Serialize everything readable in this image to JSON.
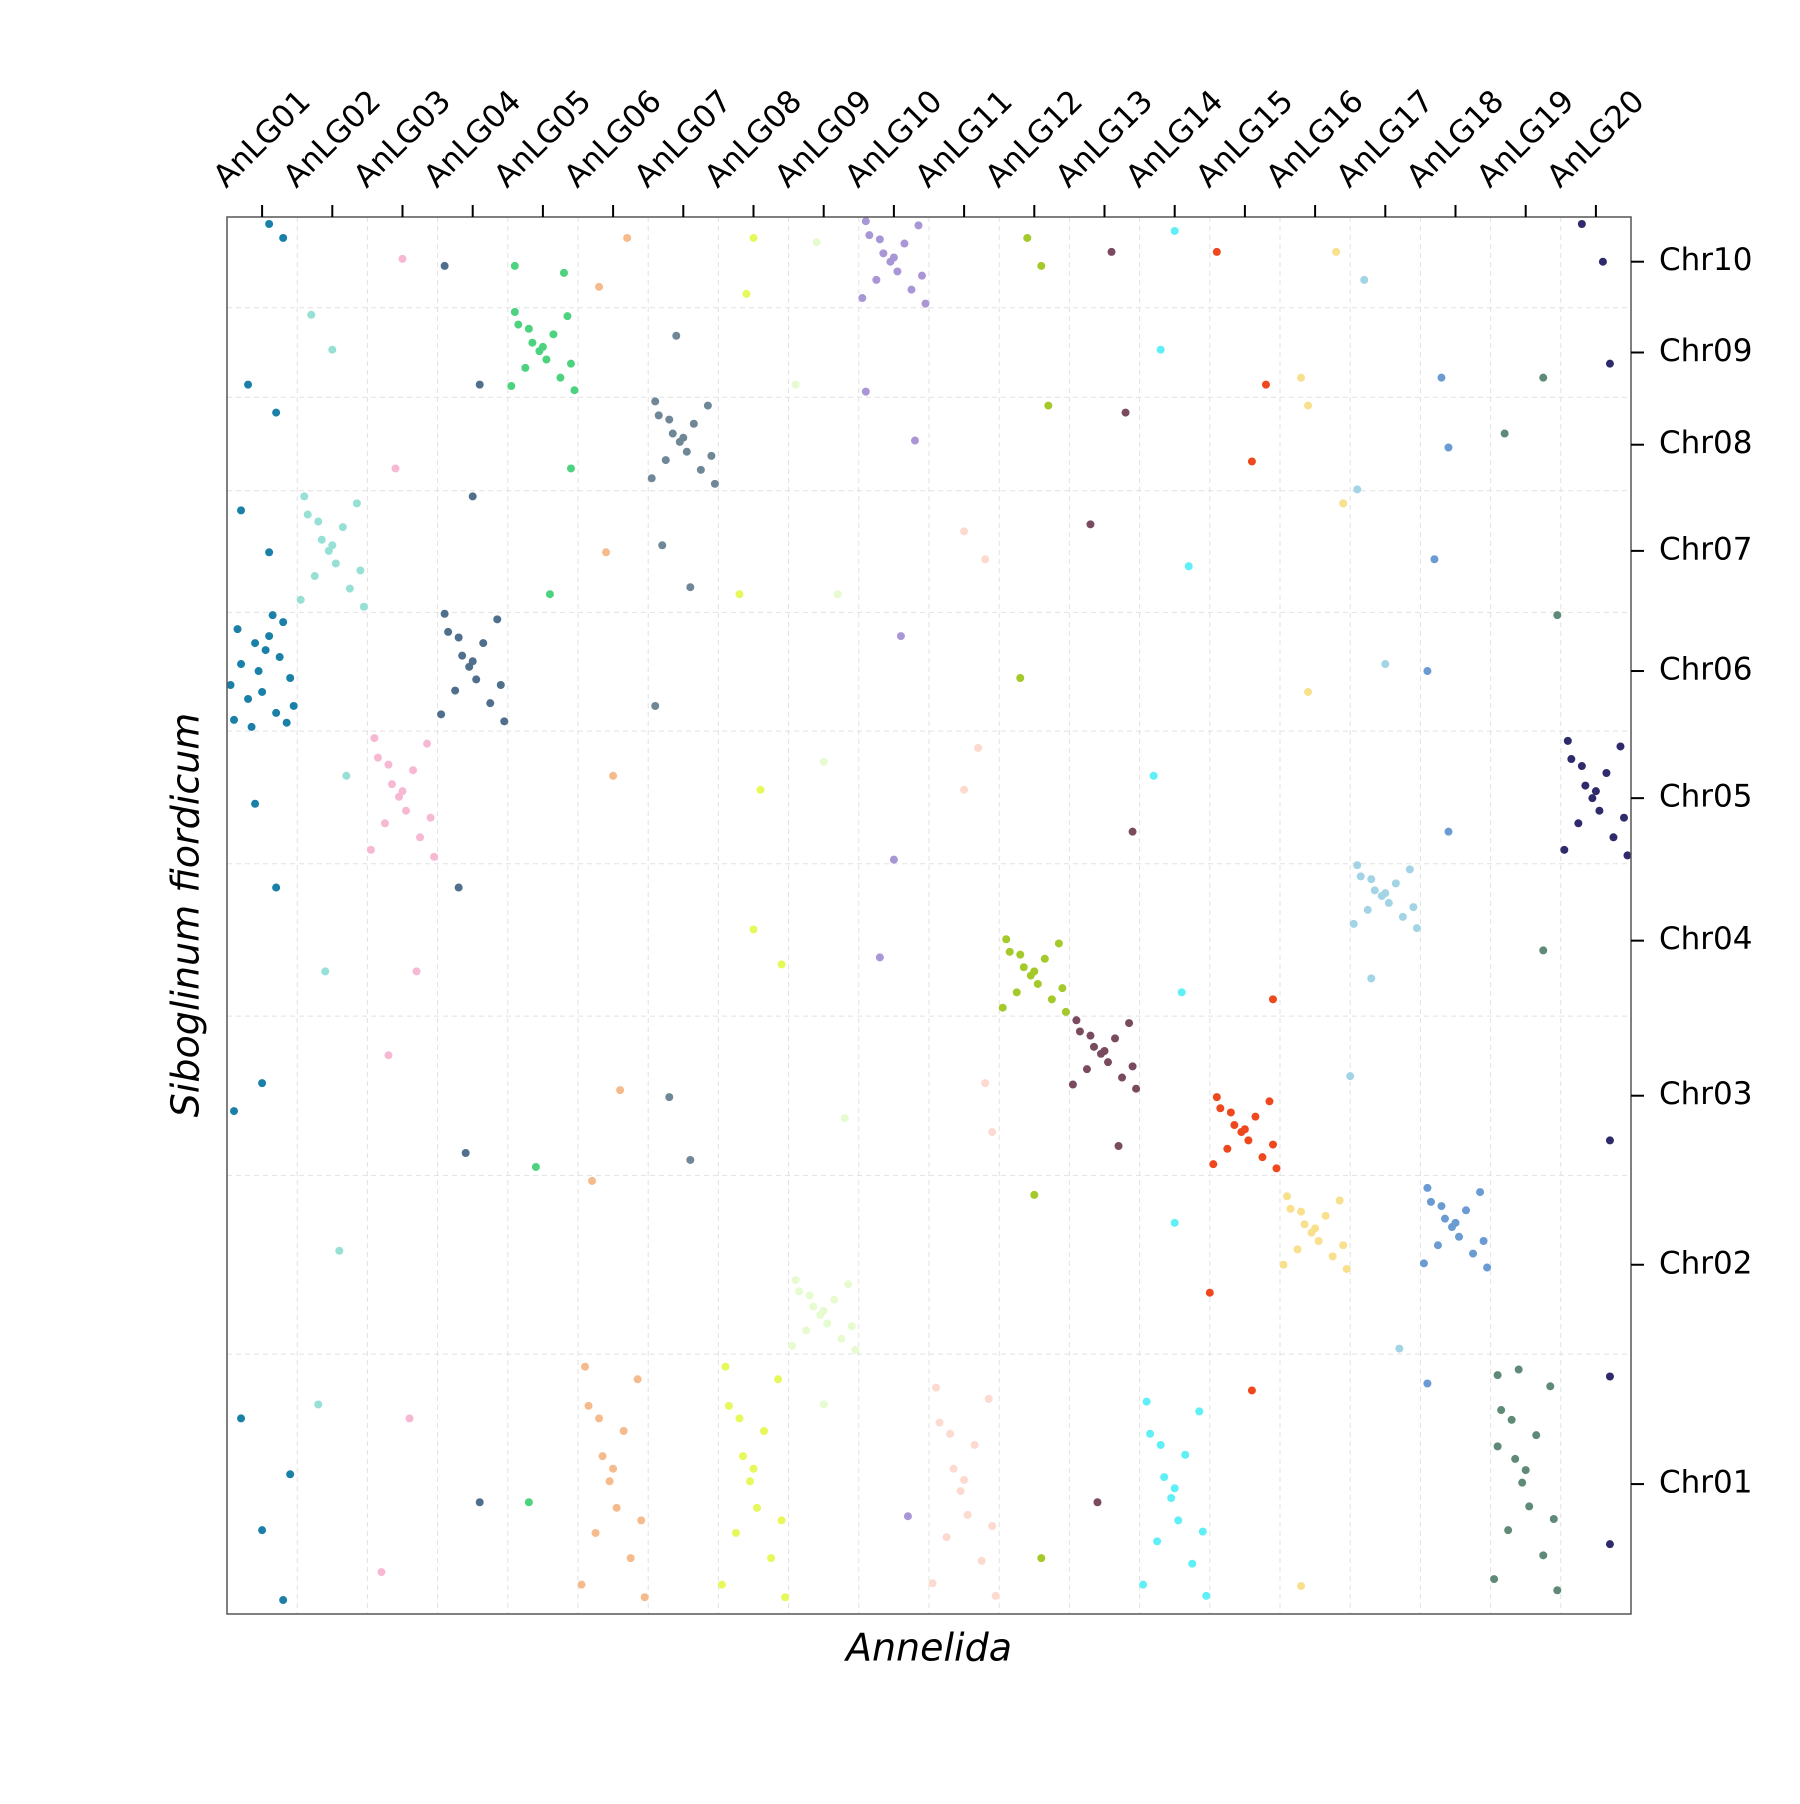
{
  "chart_data": {
    "type": "scatter",
    "xlabel": "Annelida",
    "ylabel": "Siboglinum fiordicum",
    "xlim": [
      0,
      20
    ],
    "ylim": [
      0,
      100
    ],
    "xticks": [
      {
        "value": 0.5,
        "label": "AnLG01"
      },
      {
        "value": 1.5,
        "label": "AnLG02"
      },
      {
        "value": 2.5,
        "label": "AnLG03"
      },
      {
        "value": 3.5,
        "label": "AnLG04"
      },
      {
        "value": 4.5,
        "label": "AnLG05"
      },
      {
        "value": 5.5,
        "label": "AnLG06"
      },
      {
        "value": 6.5,
        "label": "AnLG07"
      },
      {
        "value": 7.5,
        "label": "AnLG08"
      },
      {
        "value": 8.5,
        "label": "AnLG09"
      },
      {
        "value": 9.5,
        "label": "AnLG10"
      },
      {
        "value": 10.5,
        "label": "AnLG11"
      },
      {
        "value": 11.5,
        "label": "AnLG12"
      },
      {
        "value": 12.5,
        "label": "AnLG13"
      },
      {
        "value": 13.5,
        "label": "AnLG14"
      },
      {
        "value": 14.5,
        "label": "AnLG15"
      },
      {
        "value": 15.5,
        "label": "AnLG16"
      },
      {
        "value": 16.5,
        "label": "AnLG17"
      },
      {
        "value": 17.5,
        "label": "AnLG18"
      },
      {
        "value": 18.5,
        "label": "AnLG19"
      },
      {
        "value": 19.5,
        "label": "AnLG20"
      }
    ],
    "yticks": [
      {
        "value": 9.3,
        "label": "Chr01"
      },
      {
        "value": 25.0,
        "label": "Chr02"
      },
      {
        "value": 37.1,
        "label": "Chr03"
      },
      {
        "value": 48.2,
        "label": "Chr04"
      },
      {
        "value": 58.4,
        "label": "Chr05"
      },
      {
        "value": 67.5,
        "label": "Chr06"
      },
      {
        "value": 76.1,
        "label": "Chr07"
      },
      {
        "value": 83.7,
        "label": "Chr08"
      },
      {
        "value": 90.3,
        "label": "Chr09"
      },
      {
        "value": 96.8,
        "label": "Chr10"
      }
    ],
    "grid": true,
    "xgrid_lines": [
      1,
      2,
      3,
      4,
      5,
      6,
      7,
      8,
      9,
      10,
      11,
      12,
      13,
      14,
      15,
      16,
      17,
      18,
      19
    ],
    "ygrid_lines": [
      18.6,
      31.4,
      42.8,
      53.7,
      63.2,
      71.7,
      80.4,
      87.1,
      93.5
    ],
    "series": [
      {
        "color": "#1a80a8",
        "x": [
          0.1,
          0.3,
          0.5,
          0.7,
          0.9,
          0.2,
          0.4,
          0.6,
          0.8,
          0.15,
          0.45,
          0.75,
          0.95,
          0.35,
          0.65,
          0.05,
          0.55,
          0.85,
          0.6,
          0.8,
          0.3,
          0.7,
          0.2,
          0.6,
          0.4,
          0.7,
          0.5,
          0.1,
          0.2,
          0.9,
          0.5,
          0.8
        ],
        "values": [
          64.0,
          65.5,
          66.0,
          64.5,
          67.0,
          68.0,
          69.5,
          70.0,
          71.0,
          70.5,
          67.5,
          68.5,
          65.0,
          63.5,
          71.5,
          66.5,
          69.0,
          63.8,
          99.5,
          98.5,
          88.0,
          86.0,
          79.0,
          76.0,
          58.0,
          52.0,
          38.0,
          36.0,
          14.0,
          10.0,
          6.0,
          1.0
        ]
      },
      {
        "color": "#97e0d5",
        "x": [
          1.05,
          1.25,
          1.45,
          1.65,
          1.85,
          1.15,
          1.35,
          1.55,
          1.75,
          1.95,
          1.1,
          1.5,
          1.9,
          1.3,
          1.2,
          1.5,
          1.7,
          1.4,
          1.6,
          1.3
        ],
        "values": [
          72.6,
          74.3,
          76.1,
          77.8,
          79.5,
          78.7,
          76.9,
          75.2,
          73.4,
          72.1,
          80.0,
          76.5,
          74.7,
          78.2,
          93,
          90.5,
          60,
          46,
          26,
          15
        ]
      },
      {
        "color": "#f7b8d3",
        "x": [
          2.05,
          2.25,
          2.45,
          2.65,
          2.85,
          2.15,
          2.35,
          2.55,
          2.75,
          2.95,
          2.1,
          2.5,
          2.9,
          2.3,
          2.5,
          2.4,
          2.7,
          2.3,
          2.6,
          2.2
        ],
        "values": [
          54.7,
          56.6,
          58.5,
          60.4,
          62.3,
          61.3,
          59.4,
          57.5,
          55.6,
          54.2,
          62.7,
          58.9,
          57.0,
          60.8,
          97,
          82,
          46,
          40,
          14,
          3
        ]
      },
      {
        "color": "#4f6f8c",
        "x": [
          3.05,
          3.25,
          3.45,
          3.65,
          3.85,
          3.15,
          3.35,
          3.55,
          3.75,
          3.95,
          3.1,
          3.5,
          3.9,
          3.3,
          3.1,
          3.6,
          3.5,
          3.3,
          3.4,
          3.6
        ],
        "values": [
          64.4,
          66.1,
          67.8,
          69.5,
          71.2,
          70.3,
          68.6,
          66.9,
          65.2,
          63.9,
          71.6,
          68.2,
          66.5,
          69.9,
          96.5,
          88,
          80,
          52,
          33,
          8
        ]
      },
      {
        "color": "#4dd37f",
        "x": [
          4.05,
          4.25,
          4.45,
          4.65,
          4.85,
          4.15,
          4.35,
          4.55,
          4.75,
          4.95,
          4.1,
          4.5,
          4.9,
          4.3,
          4.1,
          4.8,
          4.9,
          4.6,
          4.4,
          4.3
        ],
        "values": [
          87.9,
          89.2,
          90.4,
          91.6,
          92.9,
          92.3,
          91.0,
          89.8,
          88.5,
          87.6,
          93.2,
          90.7,
          89.5,
          92.0,
          96.5,
          96,
          82,
          73,
          32,
          8
        ]
      },
      {
        "color": "#f6bb8c",
        "x": [
          5.05,
          5.25,
          5.45,
          5.65,
          5.85,
          5.15,
          5.35,
          5.55,
          5.75,
          5.95,
          5.1,
          5.5,
          5.9,
          5.3,
          5.7,
          5.3,
          5.4,
          5.5,
          5.6,
          5.2
        ],
        "values": [
          2.1,
          5.8,
          9.5,
          13.1,
          16.8,
          14.9,
          11.3,
          7.6,
          4.0,
          1.2,
          17.7,
          10.4,
          6.7,
          14.0,
          98.5,
          95,
          76,
          60,
          37.5,
          31
        ]
      },
      {
        "color": "#6f8796",
        "x": [
          6.05,
          6.25,
          6.45,
          6.65,
          6.85,
          6.15,
          6.35,
          6.55,
          6.75,
          6.95,
          6.1,
          6.5,
          6.9,
          6.3,
          6.4,
          6.2,
          6.6,
          6.1,
          6.3,
          6.6
        ],
        "values": [
          81.3,
          82.6,
          83.9,
          85.2,
          86.5,
          85.8,
          84.5,
          83.2,
          81.9,
          80.9,
          86.8,
          84.2,
          82.9,
          85.5,
          91.5,
          76.5,
          73.5,
          65,
          37,
          32.5
        ]
      },
      {
        "color": "#e6f85a",
        "x": [
          7.05,
          7.25,
          7.45,
          7.65,
          7.85,
          7.15,
          7.35,
          7.55,
          7.75,
          7.95,
          7.1,
          7.5,
          7.9,
          7.3,
          7.5,
          7.4,
          7.6,
          7.9,
          7.5,
          7.3
        ],
        "values": [
          2.1,
          5.8,
          9.5,
          13.1,
          16.8,
          14.9,
          11.3,
          7.6,
          4.0,
          1.2,
          17.7,
          10.4,
          6.7,
          14.0,
          98.5,
          94.5,
          59,
          46.5,
          49,
          73
        ]
      },
      {
        "color": "#e6fbd0",
        "x": [
          8.05,
          8.25,
          8.45,
          8.65,
          8.85,
          8.15,
          8.35,
          8.55,
          8.75,
          8.95,
          8.1,
          8.5,
          8.9,
          8.3,
          8.4,
          8.1,
          8.7,
          8.5,
          8.8,
          8.5
        ],
        "values": [
          19.2,
          20.3,
          21.4,
          22.5,
          23.6,
          23.1,
          22.0,
          20.8,
          19.7,
          18.9,
          23.9,
          21.7,
          20.6,
          22.8,
          98.2,
          88,
          73,
          61,
          35.5,
          15
        ]
      },
      {
        "color": "#a996d6",
        "x": [
          9.05,
          9.25,
          9.45,
          9.65,
          9.85,
          9.15,
          9.35,
          9.55,
          9.75,
          9.95,
          9.1,
          9.5,
          9.9,
          9.3,
          9.1,
          9.8,
          9.6,
          9.5,
          9.3,
          9.7
        ],
        "values": [
          94.2,
          95.5,
          96.8,
          98.1,
          99.4,
          98.7,
          97.4,
          96.1,
          94.8,
          93.8,
          99.7,
          97.1,
          95.8,
          98.4,
          87.5,
          84,
          70,
          54,
          47,
          7
        ]
      },
      {
        "color": "#fcdacf",
        "x": [
          10.05,
          10.25,
          10.45,
          10.65,
          10.85,
          10.15,
          10.35,
          10.55,
          10.75,
          10.95,
          10.1,
          10.5,
          10.9,
          10.3,
          10.5,
          10.8,
          10.7,
          10.5,
          10.8,
          10.9
        ],
        "values": [
          2.2,
          5.5,
          8.8,
          12.1,
          15.4,
          13.7,
          10.4,
          7.1,
          3.8,
          1.3,
          16.2,
          9.6,
          6.3,
          12.9,
          77.5,
          75.5,
          62,
          59,
          38,
          34.5
        ]
      },
      {
        "color": "#a4c92a",
        "x": [
          11.05,
          11.25,
          11.45,
          11.65,
          11.85,
          11.15,
          11.35,
          11.55,
          11.75,
          11.95,
          11.1,
          11.5,
          11.9,
          11.3,
          11.4,
          11.6,
          11.7,
          11.3,
          11.5,
          11.6
        ],
        "values": [
          43.4,
          44.5,
          45.7,
          46.9,
          48.0,
          47.4,
          46.3,
          45.1,
          44.0,
          43.1,
          48.3,
          46.0,
          44.8,
          47.2,
          98.5,
          96.5,
          86.5,
          67,
          30,
          4
        ]
      },
      {
        "color": "#7a4a5e",
        "x": [
          12.05,
          12.25,
          12.45,
          12.65,
          12.85,
          12.15,
          12.35,
          12.55,
          12.75,
          12.95,
          12.1,
          12.5,
          12.9,
          12.3,
          12.6,
          12.8,
          12.3,
          12.9,
          12.7,
          12.4
        ],
        "values": [
          37.9,
          39.0,
          40.1,
          41.2,
          42.3,
          41.7,
          40.6,
          39.5,
          38.4,
          37.6,
          42.5,
          40.3,
          39.2,
          41.4,
          97.5,
          86,
          78,
          56,
          33.5,
          8
        ]
      },
      {
        "color": "#5ef0f6",
        "x": [
          13.05,
          13.25,
          13.45,
          13.65,
          13.85,
          13.15,
          13.35,
          13.55,
          13.75,
          13.95,
          13.1,
          13.5,
          13.9,
          13.3,
          13.5,
          13.3,
          13.7,
          13.2,
          13.6,
          13.5
        ],
        "values": [
          2.1,
          5.2,
          8.3,
          11.4,
          14.5,
          12.9,
          9.8,
          6.7,
          3.6,
          1.3,
          15.2,
          9.0,
          5.9,
          12.1,
          99,
          90.5,
          75,
          60,
          44.5,
          28
        ]
      },
      {
        "color": "#f0481e",
        "x": [
          14.05,
          14.25,
          14.45,
          14.65,
          14.85,
          14.15,
          14.35,
          14.55,
          14.75,
          14.95,
          14.1,
          14.5,
          14.9,
          14.3,
          14.1,
          14.8,
          14.6,
          14.9,
          14.6,
          14.0
        ],
        "values": [
          32.2,
          33.3,
          34.5,
          35.6,
          36.7,
          36.2,
          35.0,
          33.9,
          32.7,
          31.9,
          37.0,
          34.7,
          33.6,
          35.9,
          97.5,
          88,
          82.5,
          44,
          16,
          23
        ]
      },
      {
        "color": "#f9e08d",
        "x": [
          15.05,
          15.25,
          15.45,
          15.65,
          15.85,
          15.15,
          15.35,
          15.55,
          15.75,
          15.95,
          15.1,
          15.5,
          15.9,
          15.3,
          15.8,
          15.3,
          15.4,
          15.9,
          15.4,
          15.3
        ],
        "values": [
          25.0,
          26.1,
          27.3,
          28.5,
          29.6,
          29.0,
          27.9,
          26.7,
          25.6,
          24.7,
          29.9,
          27.6,
          26.4,
          28.8,
          97.5,
          88.5,
          86.5,
          79.5,
          66,
          2
        ]
      },
      {
        "color": "#a3d4e6",
        "x": [
          16.05,
          16.25,
          16.45,
          16.65,
          16.85,
          16.15,
          16.35,
          16.55,
          16.75,
          16.95,
          16.1,
          16.5,
          16.9,
          16.3,
          16.2,
          16.1,
          16.5,
          16.3,
          16.0,
          16.7
        ],
        "values": [
          49.4,
          50.4,
          51.4,
          52.3,
          53.3,
          52.8,
          51.8,
          50.9,
          49.9,
          49.1,
          53.6,
          51.6,
          50.6,
          52.6,
          95.5,
          80.5,
          68,
          45.5,
          38.5,
          19
        ]
      },
      {
        "color": "#6b9bd3",
        "x": [
          17.05,
          17.25,
          17.45,
          17.65,
          17.85,
          17.15,
          17.35,
          17.55,
          17.75,
          17.95,
          17.1,
          17.5,
          17.9,
          17.3,
          17.3,
          17.4,
          17.2,
          17.1,
          17.4,
          17.1
        ],
        "values": [
          25.1,
          26.4,
          27.7,
          28.9,
          30.2,
          29.5,
          28.3,
          27.0,
          25.8,
          24.8,
          30.5,
          28.0,
          26.7,
          29.2,
          88.5,
          83.5,
          75.5,
          67.5,
          56,
          16.5
        ]
      },
      {
        "color": "#5f8a77",
        "x": [
          18.05,
          18.25,
          18.45,
          18.65,
          18.85,
          18.15,
          18.35,
          18.55,
          18.75,
          18.95,
          18.1,
          18.5,
          18.9,
          18.3,
          18.2,
          18.75,
          18.95,
          18.75,
          18.4,
          18.1
        ],
        "values": [
          2.5,
          6.0,
          9.4,
          12.8,
          16.3,
          14.6,
          11.1,
          7.7,
          4.2,
          1.7,
          17.1,
          10.3,
          6.8,
          13.9,
          84.5,
          88.5,
          71.5,
          47.5,
          17.5,
          12
        ]
      },
      {
        "color": "#2e2a6b",
        "x": [
          19.05,
          19.25,
          19.45,
          19.65,
          19.85,
          19.15,
          19.35,
          19.55,
          19.75,
          19.95,
          19.1,
          19.5,
          19.9,
          19.3,
          19.3,
          19.6,
          19.7,
          19.7,
          19.7,
          19.7
        ],
        "values": [
          54.7,
          56.6,
          58.4,
          60.2,
          62.1,
          61.2,
          59.3,
          57.5,
          55.6,
          54.3,
          62.5,
          58.9,
          57.0,
          60.7,
          99.5,
          96.8,
          89.5,
          33.9,
          5,
          17
        ]
      }
    ]
  }
}
